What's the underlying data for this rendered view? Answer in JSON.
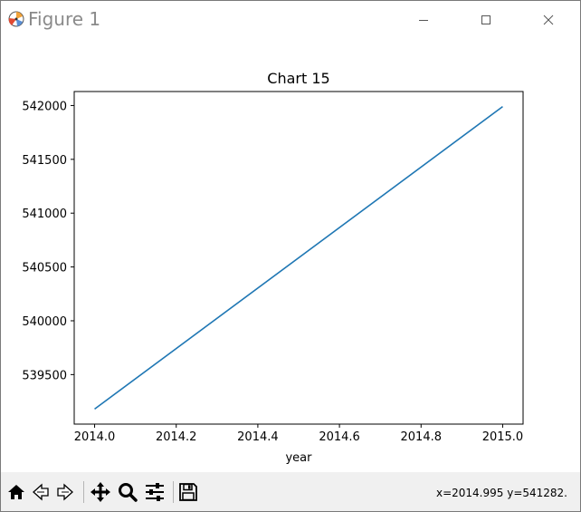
{
  "window": {
    "title": "Figure 1",
    "controls": [
      "minimize",
      "maximize",
      "close"
    ]
  },
  "toolbar": {
    "buttons": [
      "home-icon",
      "back-icon",
      "forward-icon",
      "pan-icon",
      "zoom-icon",
      "configure-subplots-icon",
      "save-icon"
    ],
    "coords_text": "x=2014.995 y=541282."
  },
  "chart_data": {
    "type": "line",
    "title": "Chart 15",
    "xlabel": "year",
    "ylabel": "",
    "x": [
      2014.0,
      2015.0
    ],
    "series": [
      {
        "name": "",
        "values": [
          539180,
          541990
        ],
        "color": "#1f77b4"
      }
    ],
    "xlim": [
      2013.95,
      2015.05
    ],
    "ylim": [
      539040,
      542130
    ],
    "xticks": [
      2014.0,
      2014.2,
      2014.4,
      2014.6,
      2014.8,
      2015.0
    ],
    "xtick_labels": [
      "2014.0",
      "2014.2",
      "2014.4",
      "2014.6",
      "2014.8",
      "2015.0"
    ],
    "yticks": [
      539500,
      540000,
      540500,
      541000,
      541500,
      542000
    ],
    "ytick_labels": [
      "539500",
      "540000",
      "540500",
      "541000",
      "541500",
      "542000"
    ],
    "grid": false
  }
}
